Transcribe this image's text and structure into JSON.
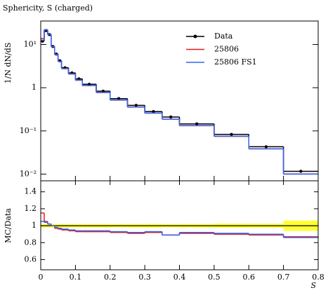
{
  "chart_data": {
    "type": "histogram",
    "title": "Sphericity, S (charged)",
    "ylabel": "1/N dN/dS",
    "xlabel": "S",
    "log_y": true,
    "bins": [
      0,
      0.01,
      0.02,
      0.03,
      0.04,
      0.05,
      0.06,
      0.08,
      0.1,
      0.12,
      0.16,
      0.2,
      0.25,
      0.3,
      0.35,
      0.4,
      0.5,
      0.6,
      0.7,
      0.8
    ],
    "xlim": [
      0,
      0.8
    ],
    "xticks": [
      0,
      0.1,
      0.2,
      0.3,
      0.4,
      0.5,
      0.6,
      0.7,
      0.8
    ],
    "ylim": [
      0.007,
      35
    ],
    "yticks": [
      {
        "value": 10,
        "label": "10¹"
      },
      1,
      {
        "value": 0.1,
        "label": "10⁻¹"
      },
      {
        "value": 0.01,
        "label": "10⁻²"
      }
    ],
    "legend": "upper right",
    "series": [
      {
        "name": "Data",
        "color": "#000000",
        "values": [
          12,
          21,
          17,
          9,
          6,
          4.2,
          2.9,
          2.2,
          1.6,
          1.2,
          0.83,
          0.56,
          0.39,
          0.28,
          0.21,
          0.145,
          0.083,
          0.043,
          0.0116
        ],
        "errors": [
          0.24,
          0.42,
          0.34,
          0.18,
          0.12,
          0.084,
          0.058,
          0.044,
          0.032,
          0.024,
          0.017,
          0.011,
          0.008,
          0.006,
          0.004,
          0.003,
          0.002,
          0.001,
          0.0007
        ]
      },
      {
        "name": "25806",
        "color": "#e41a1c",
        "values": [
          13.8,
          22.05,
          17.34,
          9,
          5.82,
          4.032,
          2.755,
          2.068,
          1.488,
          1.116,
          0.7719,
          0.5152,
          0.3549,
          0.2576,
          0.1869,
          0.13195,
          0.0747,
          0.03827,
          0.010092
        ]
      },
      {
        "name": "25806 FS1",
        "color": "#3366ee",
        "values": [
          12.6,
          21.84,
          17.34,
          9,
          5.88,
          4.074,
          2.784,
          2.09,
          1.504,
          1.128,
          0.7802,
          0.5208,
          0.3588,
          0.2604,
          0.1869,
          0.1334,
          0.07553,
          0.0387,
          0.009976
        ]
      }
    ],
    "ratio": {
      "ylabel": "MC/Data",
      "ylim": [
        0.48,
        1.53
      ],
      "yticks": [
        0.6,
        0.8,
        1,
        1.2,
        1.4
      ],
      "band_color": "#ffff33"
    }
  }
}
